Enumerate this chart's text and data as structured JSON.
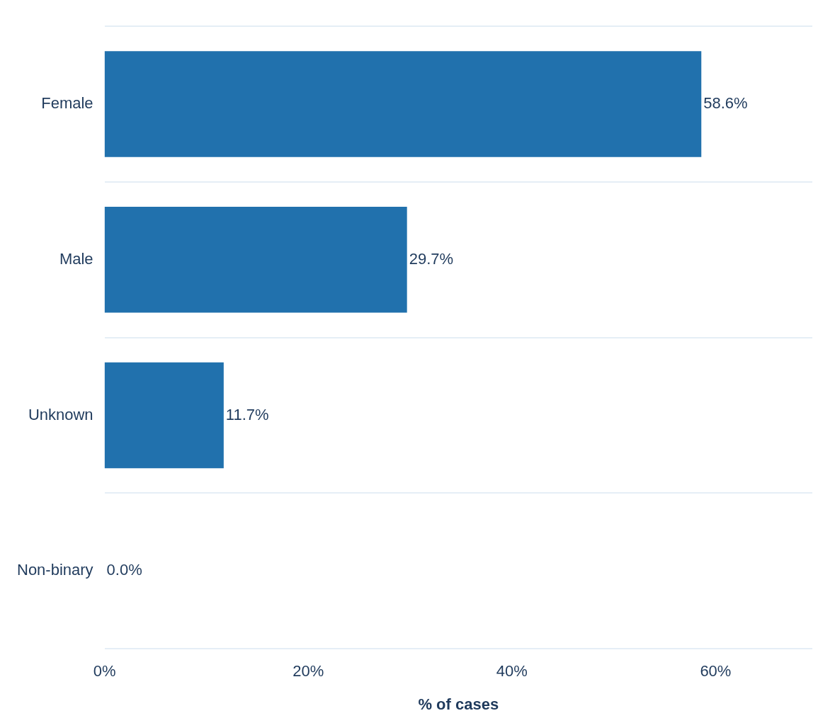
{
  "chart_data": {
    "type": "bar",
    "orientation": "horizontal",
    "xlabel": "% of cases",
    "categories": [
      "Female",
      "Male",
      "Unknown",
      "Non-binary"
    ],
    "values": [
      58.6,
      29.7,
      11.7,
      0.0
    ],
    "value_labels": [
      "58.6%",
      "29.7%",
      "11.7%",
      "0.0%"
    ],
    "color": "#2171ad",
    "xlim": [
      0,
      69.5
    ],
    "xticks": [
      {
        "value": 0,
        "label": "0%"
      },
      {
        "value": 20,
        "label": "20%"
      },
      {
        "value": 40,
        "label": "40%"
      },
      {
        "value": 60,
        "label": "60%"
      }
    ],
    "grid": "y",
    "legend": false
  }
}
